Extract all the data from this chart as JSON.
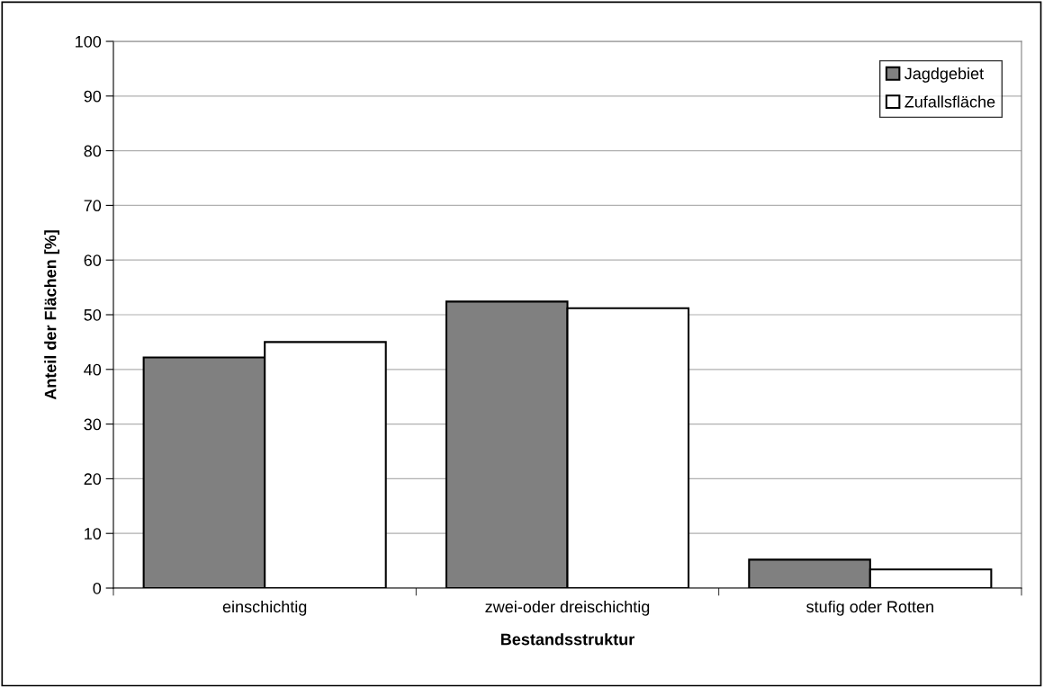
{
  "chart_data": {
    "type": "bar",
    "xlabel": "Bestandsstruktur",
    "ylabel": "Anteil der Flächen [%]",
    "categories": [
      "einschichtig",
      "zwei-oder dreischichtig",
      "stufig oder Rotten"
    ],
    "series": [
      {
        "name": "Jagdgebiet",
        "color": "#808080",
        "values": [
          42.2,
          52.4,
          5.2
        ]
      },
      {
        "name": "Zufallsfläche",
        "color": "#ffffff",
        "values": [
          45.0,
          51.2,
          3.4
        ]
      }
    ],
    "ylim": [
      0,
      100
    ],
    "yticks": [
      0,
      10,
      20,
      30,
      40,
      50,
      60,
      70,
      80,
      90,
      100
    ],
    "grid": "y",
    "legend": "top right"
  }
}
